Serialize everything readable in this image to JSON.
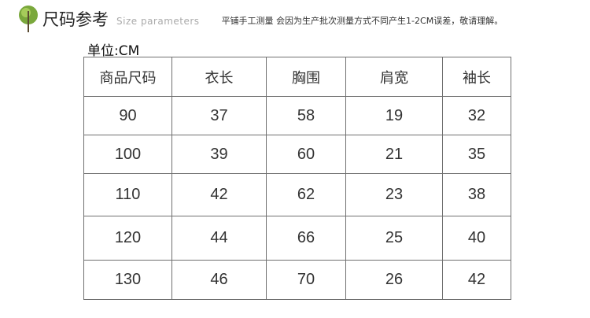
{
  "header": {
    "title": "尺码参考",
    "subtitle": "Size parameters",
    "note": "平铺手工测量 会因为生产批次测量方式不同产生1-2CM误差，敬请理解。",
    "icon": "leaf-icon"
  },
  "unit": "单位:CM",
  "table": {
    "columns": [
      "商品尺码",
      "衣长",
      "胸围",
      "肩宽",
      "袖长"
    ],
    "rows": [
      [
        "90",
        "37",
        "58",
        "19",
        "32"
      ],
      [
        "100",
        "39",
        "60",
        "21",
        "35"
      ],
      [
        "110",
        "42",
        "62",
        "23",
        "38"
      ],
      [
        "120",
        "44",
        "66",
        "25",
        "40"
      ],
      [
        "130",
        "46",
        "70",
        "26",
        "42"
      ]
    ]
  }
}
